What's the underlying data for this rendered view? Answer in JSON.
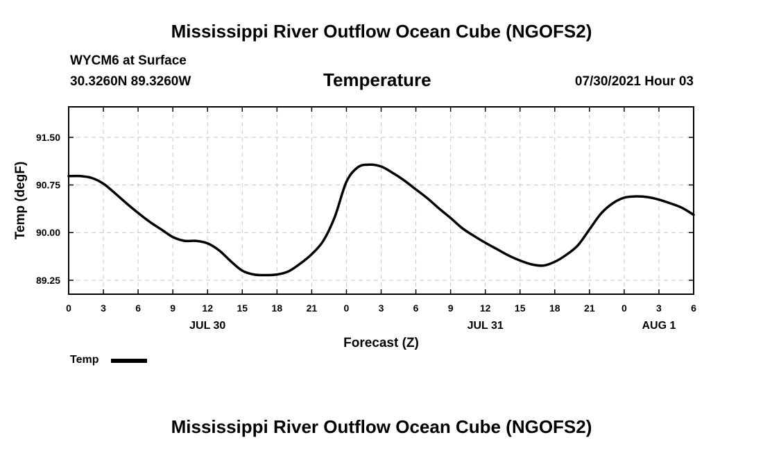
{
  "header": {
    "title_top": "Mississippi River Outflow Ocean Cube (NGOFS2)",
    "station": "WYCM6 at Surface",
    "coordinates": "30.3260N  89.3260W",
    "timestamp": "07/30/2021 Hour 03"
  },
  "footer": {
    "title_bottom": "Mississippi River Outflow Ocean Cube (NGOFS2)"
  },
  "legend": {
    "label": "Temp",
    "color": "#000000"
  },
  "chart_data": {
    "type": "line",
    "title": "Temperature",
    "xlabel": "Forecast (Z)",
    "ylabel": "Temp (degF)",
    "xlim": [
      0,
      54
    ],
    "ylim": [
      89.03,
      91.98
    ],
    "y_ticks": [
      89.25,
      90.0,
      90.75,
      91.5
    ],
    "y_tick_labels": [
      "89.25",
      "90.00",
      "90.75",
      "91.50"
    ],
    "x_ticks": [
      0,
      3,
      6,
      9,
      12,
      15,
      18,
      21,
      24,
      27,
      30,
      33,
      36,
      39,
      42,
      45,
      48,
      51,
      54
    ],
    "x_tick_labels": [
      "0",
      "3",
      "6",
      "9",
      "12",
      "15",
      "18",
      "21",
      "0",
      "3",
      "6",
      "9",
      "12",
      "15",
      "18",
      "21",
      "0",
      "3",
      "6"
    ],
    "date_labels": [
      {
        "x": 12,
        "label": "JUL 30"
      },
      {
        "x": 36,
        "label": "JUL 31"
      },
      {
        "x": 51,
        "label": "AUG 1"
      }
    ],
    "grid": true,
    "series": [
      {
        "name": "Temp",
        "color": "#000000",
        "x": [
          0,
          1,
          2,
          3,
          4,
          5,
          6,
          7,
          8,
          9,
          10,
          11,
          12,
          13,
          14,
          15,
          16,
          17,
          18,
          19,
          20,
          21,
          22,
          23,
          24,
          25,
          26,
          27,
          28,
          29,
          30,
          31,
          32,
          33,
          34,
          35,
          36,
          37,
          38,
          39,
          40,
          41,
          42,
          43,
          44,
          45,
          46,
          47,
          48,
          49,
          50,
          51,
          52,
          53,
          54
        ],
        "values": [
          90.89,
          90.89,
          90.86,
          90.77,
          90.62,
          90.46,
          90.31,
          90.17,
          90.05,
          89.93,
          89.87,
          89.87,
          89.83,
          89.72,
          89.55,
          89.4,
          89.34,
          89.33,
          89.34,
          89.39,
          89.51,
          89.66,
          89.87,
          90.25,
          90.8,
          91.03,
          91.07,
          91.04,
          90.94,
          90.82,
          90.68,
          90.54,
          90.38,
          90.23,
          90.07,
          89.95,
          89.84,
          89.74,
          89.64,
          89.56,
          89.5,
          89.48,
          89.54,
          89.65,
          89.8,
          90.05,
          90.3,
          90.46,
          90.55,
          90.57,
          90.56,
          90.52,
          90.46,
          90.39,
          90.28
        ]
      }
    ]
  }
}
